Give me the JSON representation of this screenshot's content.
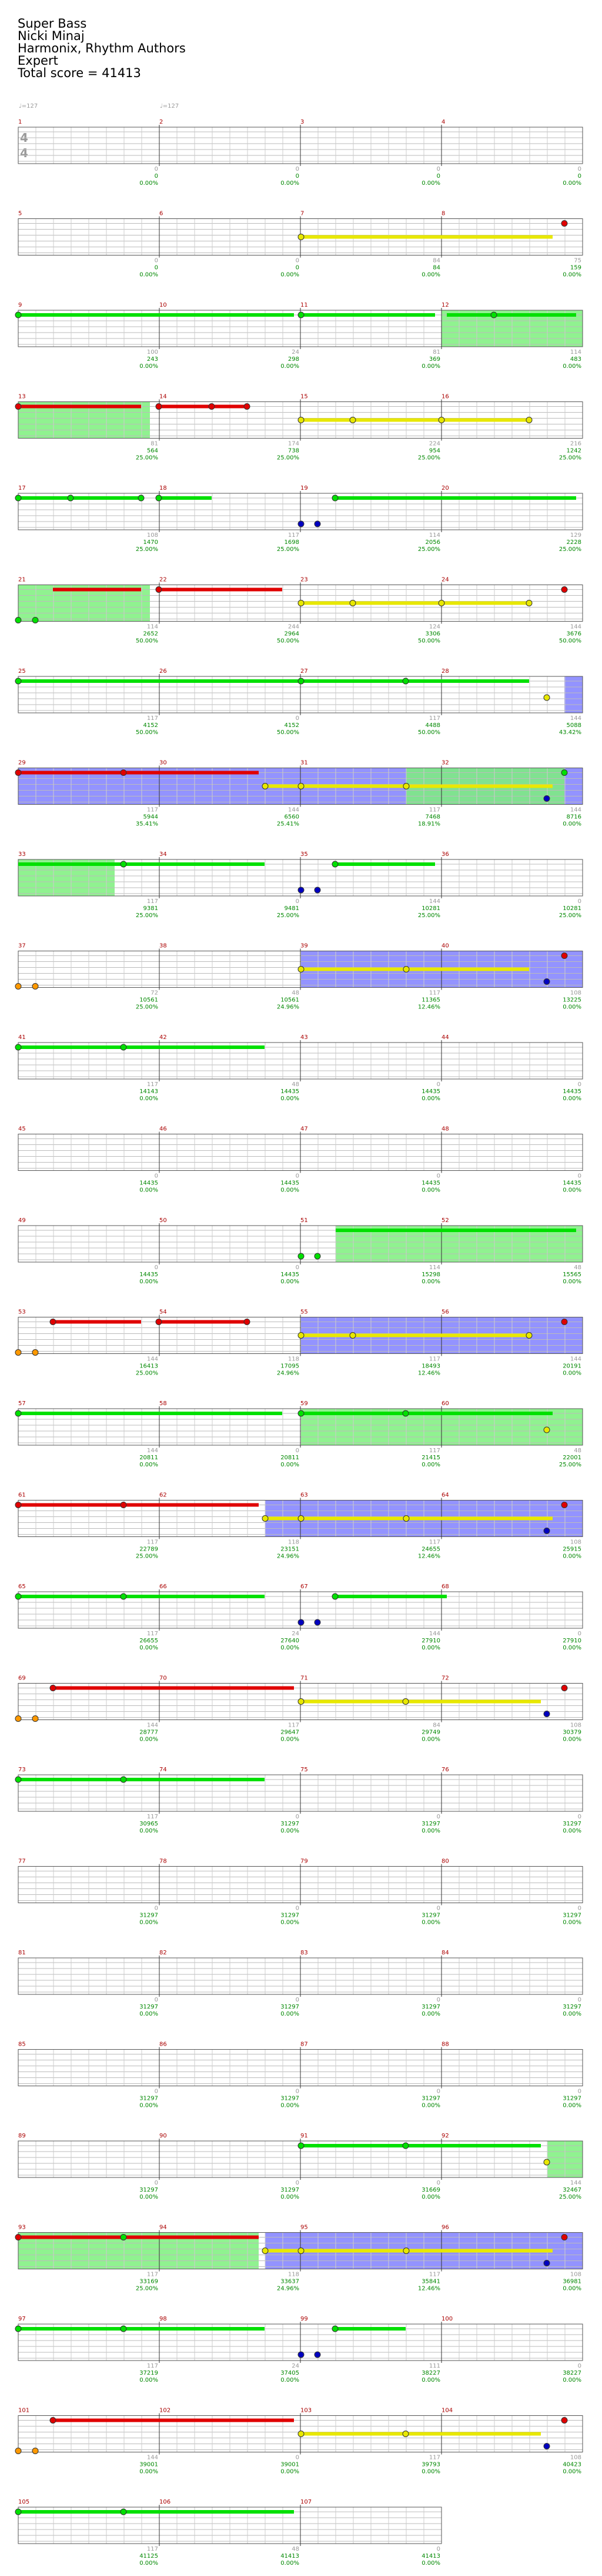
{
  "header": {
    "song_title": "Super Bass",
    "artist": "Nicki Minaj",
    "charter": "Harmonix, Rhythm Authors",
    "difficulty": "Expert",
    "total_score": "Total score = 41413"
  },
  "tempo_markers": [
    "♩=127",
    "♩=127"
  ],
  "time_signature": {
    "top": "4",
    "bottom": "4"
  },
  "colors": {
    "green": "#00e000",
    "red": "#e00000",
    "yellow": "#e8e800",
    "blue": "#0000c0",
    "orange": "#ff9900",
    "sp_green": "#7cf07c",
    "sp_blue": "#8080ff"
  },
  "rows": [
    {
      "measures": [
        "1",
        "2",
        "3",
        "4"
      ],
      "mscore": [
        "0",
        "0",
        "0",
        "0"
      ],
      "cum": [
        "",
        "0",
        "0",
        "0",
        "0"
      ],
      "pct": [
        "",
        "0.00%",
        "0.00%",
        "0.00%",
        "0.00%"
      ]
    },
    {
      "measures": [
        "5",
        "6",
        "7",
        "8"
      ],
      "mscore": [
        "0",
        "0",
        "84",
        "75"
      ],
      "cum": [
        "",
        "0",
        "0",
        "84",
        "159"
      ],
      "pct": [
        "",
        "0.00%",
        "0.00%",
        "0.00%",
        "0.00%"
      ]
    },
    {
      "measures": [
        "9",
        "10",
        "11",
        "12"
      ],
      "mscore": [
        "100",
        "24",
        "81",
        "114"
      ],
      "cum": [
        "",
        "243",
        "298",
        "369",
        "483"
      ],
      "pct": [
        "",
        "0.00%",
        "0.00%",
        "0.00%",
        "0.00%"
      ]
    },
    {
      "measures": [
        "13",
        "14",
        "15",
        "16"
      ],
      "mscore": [
        "81",
        "174",
        "224",
        "216"
      ],
      "cum": [
        "",
        "564",
        "738",
        "954",
        "1242"
      ],
      "pct": [
        "",
        "25.00%",
        "25.00%",
        "25.00%",
        "25.00%"
      ]
    },
    {
      "measures": [
        "17",
        "18",
        "19",
        "20"
      ],
      "mscore": [
        "108",
        "117",
        "114",
        "129"
      ],
      "cum": [
        "",
        "1470",
        "1698",
        "2056",
        "2228"
      ],
      "pct": [
        "",
        "25.00%",
        "25.00%",
        "25.00%",
        "25.00%"
      ]
    },
    {
      "measures": [
        "21",
        "22",
        "23",
        "24"
      ],
      "mscore": [
        "114",
        "244",
        "124",
        "144"
      ],
      "cum": [
        "",
        "2652",
        "2964",
        "3306",
        "3676"
      ],
      "pct": [
        "",
        "50.00%",
        "50.00%",
        "50.00%",
        "50.00%"
      ]
    },
    {
      "measures": [
        "25",
        "26",
        "27",
        "28"
      ],
      "mscore": [
        "117",
        "0",
        "117",
        "144"
      ],
      "cum": [
        "",
        "4152",
        "4152",
        "4488",
        "5088"
      ],
      "pct": [
        "",
        "50.00%",
        "50.00%",
        "50.00%",
        "43.42%"
      ]
    },
    {
      "measures": [
        "29",
        "30",
        "31",
        "32"
      ],
      "mscore": [
        "117",
        "144",
        "117",
        "144"
      ],
      "cum": [
        "",
        "5944",
        "6560",
        "7468",
        "8716"
      ],
      "pct": [
        "",
        "35.41%",
        "25.41%",
        "18.91%",
        "0.00%"
      ]
    },
    {
      "measures": [
        "33",
        "34",
        "35",
        "36"
      ],
      "mscore": [
        "117",
        "0",
        "144",
        "0"
      ],
      "cum": [
        "",
        "9381",
        "9481",
        "10281",
        "10281"
      ],
      "pct": [
        "",
        "25.00%",
        "25.00%",
        "25.00%",
        "25.00%"
      ]
    },
    {
      "measures": [
        "37",
        "38",
        "39",
        "40"
      ],
      "mscore": [
        "72",
        "48",
        "117",
        "108"
      ],
      "cum": [
        "",
        "10561",
        "10561",
        "11365",
        "13225"
      ],
      "pct": [
        "",
        "25.00%",
        "24.96%",
        "12.46%",
        "0.00%"
      ]
    },
    {
      "measures": [
        "41",
        "42",
        "43",
        "44"
      ],
      "mscore": [
        "117",
        "48",
        "0",
        "0"
      ],
      "cum": [
        "",
        "14143",
        "14435",
        "14435",
        "14435"
      ],
      "pct": [
        "",
        "0.00%",
        "0.00%",
        "0.00%",
        "0.00%"
      ]
    },
    {
      "measures": [
        "45",
        "46",
        "47",
        "48"
      ],
      "mscore": [
        "0",
        "0",
        "0",
        "0"
      ],
      "cum": [
        "",
        "14435",
        "14435",
        "14435",
        "14435"
      ],
      "pct": [
        "",
        "0.00%",
        "0.00%",
        "0.00%",
        "0.00%"
      ]
    },
    {
      "measures": [
        "49",
        "50",
        "51",
        "52"
      ],
      "mscore": [
        "0",
        "0",
        "114",
        "48"
      ],
      "cum": [
        "",
        "14435",
        "14435",
        "15298",
        "15565"
      ],
      "pct": [
        "",
        "0.00%",
        "0.00%",
        "0.00%",
        "0.00%"
      ]
    },
    {
      "measures": [
        "53",
        "54",
        "55",
        "56"
      ],
      "mscore": [
        "144",
        "118",
        "117",
        "144"
      ],
      "cum": [
        "",
        "16413",
        "17095",
        "18493",
        "20191"
      ],
      "pct": [
        "",
        "25.00%",
        "24.96%",
        "12.46%",
        "0.00%"
      ]
    },
    {
      "measures": [
        "57",
        "58",
        "59",
        "60"
      ],
      "mscore": [
        "144",
        "0",
        "117",
        "48"
      ],
      "cum": [
        "",
        "20811",
        "20811",
        "21415",
        "22001"
      ],
      "pct": [
        "",
        "0.00%",
        "0.00%",
        "0.00%",
        "25.00%"
      ]
    },
    {
      "measures": [
        "61",
        "62",
        "63",
        "64"
      ],
      "mscore": [
        "117",
        "118",
        "117",
        "108"
      ],
      "cum": [
        "",
        "22789",
        "23151",
        "24655",
        "25915"
      ],
      "pct": [
        "",
        "25.00%",
        "24.96%",
        "12.46%",
        "0.00%"
      ]
    },
    {
      "measures": [
        "65",
        "66",
        "67",
        "68"
      ],
      "mscore": [
        "117",
        "24",
        "144",
        "0"
      ],
      "cum": [
        "",
        "26655",
        "27640",
        "27910",
        "27910"
      ],
      "pct": [
        "",
        "0.00%",
        "0.00%",
        "0.00%",
        "0.00%"
      ]
    },
    {
      "measures": [
        "69",
        "70",
        "71",
        "72"
      ],
      "mscore": [
        "144",
        "117",
        "84",
        "108"
      ],
      "cum": [
        "",
        "28777",
        "29647",
        "29749",
        "30379"
      ],
      "pct": [
        "",
        "0.00%",
        "0.00%",
        "0.00%",
        "0.00%"
      ]
    },
    {
      "measures": [
        "73",
        "74",
        "75",
        "76"
      ],
      "mscore": [
        "117",
        "0",
        "0",
        "0"
      ],
      "cum": [
        "",
        "30965",
        "31297",
        "31297",
        "31297"
      ],
      "pct": [
        "",
        "0.00%",
        "0.00%",
        "0.00%",
        "0.00%"
      ]
    },
    {
      "measures": [
        "77",
        "78",
        "79",
        "80"
      ],
      "mscore": [
        "0",
        "0",
        "0",
        "0"
      ],
      "cum": [
        "",
        "31297",
        "31297",
        "31297",
        "31297"
      ],
      "pct": [
        "",
        "0.00%",
        "0.00%",
        "0.00%",
        "0.00%"
      ]
    },
    {
      "measures": [
        "81",
        "82",
        "83",
        "84"
      ],
      "mscore": [
        "0",
        "0",
        "0",
        "0"
      ],
      "cum": [
        "",
        "31297",
        "31297",
        "31297",
        "31297"
      ],
      "pct": [
        "",
        "0.00%",
        "0.00%",
        "0.00%",
        "0.00%"
      ]
    },
    {
      "measures": [
        "85",
        "86",
        "87",
        "88"
      ],
      "mscore": [
        "0",
        "0",
        "0",
        "0"
      ],
      "cum": [
        "",
        "31297",
        "31297",
        "31297",
        "31297"
      ],
      "pct": [
        "",
        "0.00%",
        "0.00%",
        "0.00%",
        "0.00%"
      ]
    },
    {
      "measures": [
        "89",
        "90",
        "91",
        "92"
      ],
      "mscore": [
        "0",
        "0",
        "0",
        "144"
      ],
      "cum": [
        "",
        "31297",
        "31297",
        "31669",
        "32467"
      ],
      "pct": [
        "",
        "0.00%",
        "0.00%",
        "0.00%",
        "25.00%"
      ]
    },
    {
      "measures": [
        "93",
        "94",
        "95",
        "96"
      ],
      "mscore": [
        "117",
        "118",
        "117",
        "108"
      ],
      "cum": [
        "",
        "33169",
        "33637",
        "35841",
        "36981"
      ],
      "pct": [
        "",
        "25.00%",
        "24.96%",
        "12.46%",
        "0.00%"
      ]
    },
    {
      "measures": [
        "97",
        "98",
        "99",
        "100"
      ],
      "mscore": [
        "117",
        "24",
        "111",
        "0"
      ],
      "cum": [
        "",
        "37219",
        "37405",
        "38227",
        "38227"
      ],
      "pct": [
        "",
        "0.00%",
        "0.00%",
        "0.00%",
        "0.00%"
      ]
    },
    {
      "measures": [
        "101",
        "102",
        "103",
        "104"
      ],
      "mscore": [
        "144",
        "0",
        "117",
        "108"
      ],
      "cum": [
        "",
        "39001",
        "39001",
        "39793",
        "40423"
      ],
      "pct": [
        "",
        "0.00%",
        "0.00%",
        "0.00%",
        "0.00%"
      ]
    },
    {
      "measures": [
        "105",
        "106",
        "107"
      ],
      "mscore": [
        "117",
        "48",
        "0"
      ],
      "cum": [
        "",
        "41125",
        "41413",
        "41413"
      ],
      "pct": [
        "",
        "0.00%",
        "0.00%",
        "0.00%"
      ]
    }
  ]
}
